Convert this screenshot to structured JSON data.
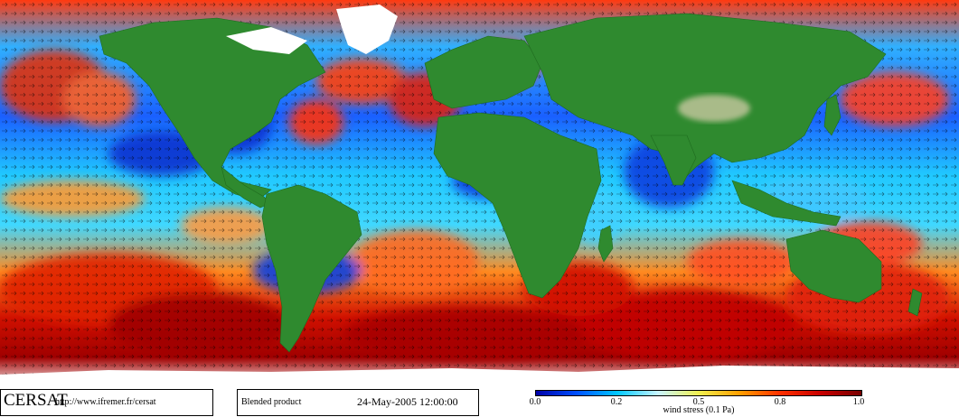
{
  "map": {
    "land_color": "#2f8a2f",
    "ice_color": "#ffffff",
    "arrow_color": "#000000",
    "colorbar_colors": [
      "#0000a8",
      "#0050ff",
      "#00c8ff",
      "#c8f5ff",
      "#f0f050",
      "#ffa000",
      "#ff3000",
      "#c80000",
      "#780000"
    ]
  },
  "footer": {
    "brand": "CERSAT",
    "url": "http://www.ifremer.fr/cersat",
    "product": "Blended product",
    "date": "24-May-2005 12:00:00",
    "scale_title": "wind stress (0.1 Pa)",
    "scale_ticks": [
      "0.0",
      "0.2",
      "0.5",
      "0.8",
      "1.0"
    ]
  }
}
